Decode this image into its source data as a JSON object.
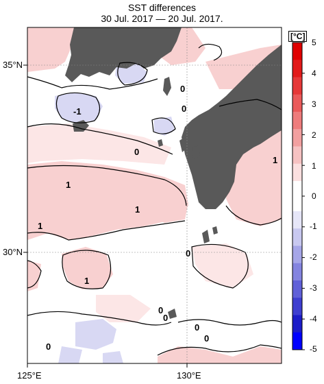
{
  "title_line1": "SST differences",
  "title_line2": "30 Jul. 2017 — 20 Jul. 2017.",
  "lat_labels": [
    "35°N",
    "30°N"
  ],
  "lon_labels": [
    "125°E",
    "130°E"
  ],
  "colorbar": {
    "unit": "[°C]",
    "ticks": [
      "5",
      "4",
      "3",
      "2",
      "1",
      "0",
      "-1",
      "-2",
      "-3",
      "-4",
      "-5"
    ],
    "colors_warm": [
      "#fbe0e0",
      "#f6c2c2",
      "#f2a0a0",
      "#ee7c7c",
      "#ea5a5a",
      "#e63838",
      "#e21a1a",
      "#e00000"
    ],
    "colors_cold": [
      "#e6e6f8",
      "#c8c8f0",
      "#a6a6e8",
      "#8484e0",
      "#6060d8",
      "#3e3ed0",
      "#1c1cc8",
      "#0000ff"
    ]
  },
  "contour_labels": [
    "-1",
    "0",
    "0",
    "0",
    "0",
    "0",
    "1",
    "1",
    "1",
    "1",
    "1",
    "0",
    "0",
    "0",
    "0"
  ],
  "colors": {
    "land": "#595959",
    "warm": "#f7c8c8",
    "warm_light": "#fbe3e3",
    "cold": "#d6d6f2"
  }
}
